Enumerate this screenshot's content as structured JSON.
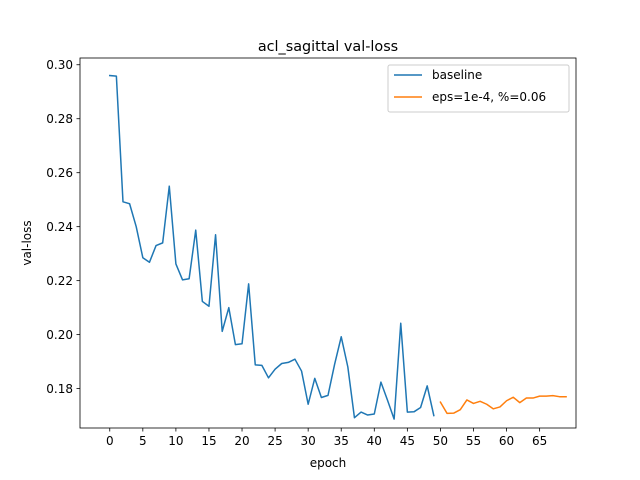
{
  "chart_data": {
    "type": "line",
    "title": "acl_sagittal val-loss",
    "xlabel": "epoch",
    "ylabel": "val-loss",
    "xlim": [
      -4.5,
      70.5
    ],
    "ylim": [
      0.1654,
      0.3025
    ],
    "xticks": [
      0,
      5,
      10,
      15,
      20,
      25,
      30,
      35,
      40,
      45,
      50,
      55,
      60,
      65
    ],
    "yticks": [
      0.18,
      0.2,
      0.22,
      0.24,
      0.26,
      0.28,
      0.3
    ],
    "ytick_labels": [
      "0.18",
      "0.20",
      "0.22",
      "0.24",
      "0.26",
      "0.28",
      "0.30"
    ],
    "grid": false,
    "legend_position": "upper right",
    "series": [
      {
        "name": "baseline",
        "color": "#1f77b4",
        "x": [
          0,
          1,
          2,
          3,
          4,
          5,
          6,
          7,
          8,
          9,
          10,
          11,
          12,
          13,
          14,
          15,
          16,
          17,
          18,
          19,
          20,
          21,
          22,
          23,
          24,
          25,
          26,
          27,
          28,
          29,
          30,
          31,
          32,
          33,
          34,
          35,
          36,
          37,
          38,
          39,
          40,
          41,
          42,
          43,
          44,
          45,
          46,
          47,
          48,
          49
        ],
        "y": [
          0.296,
          0.2958,
          0.2492,
          0.2485,
          0.24,
          0.2285,
          0.2268,
          0.233,
          0.234,
          0.255,
          0.2262,
          0.2203,
          0.2207,
          0.2387,
          0.2123,
          0.2105,
          0.237,
          0.2012,
          0.21,
          0.1963,
          0.1966,
          0.2188,
          0.1888,
          0.1886,
          0.184,
          0.1872,
          0.1893,
          0.1897,
          0.1909,
          0.1865,
          0.1742,
          0.1838,
          0.1767,
          0.1775,
          0.189,
          0.1992,
          0.188,
          0.1692,
          0.1713,
          0.1702,
          0.1706,
          0.1824,
          0.1757,
          0.1687,
          0.2042,
          0.1713,
          0.1714,
          0.173,
          0.181,
          0.17
        ]
      },
      {
        "name": "eps=1e-4, %=0.06",
        "color": "#ff7f0e",
        "x": [
          50,
          51,
          52,
          53,
          54,
          55,
          56,
          57,
          58,
          59,
          60,
          61,
          62,
          63,
          64,
          65,
          66,
          67,
          68,
          69
        ],
        "y": [
          0.175,
          0.1708,
          0.1709,
          0.1722,
          0.1758,
          0.1745,
          0.1753,
          0.1742,
          0.1725,
          0.1732,
          0.1755,
          0.1768,
          0.1748,
          0.1765,
          0.1765,
          0.1772,
          0.1772,
          0.1774,
          0.177,
          0.177
        ]
      }
    ]
  }
}
